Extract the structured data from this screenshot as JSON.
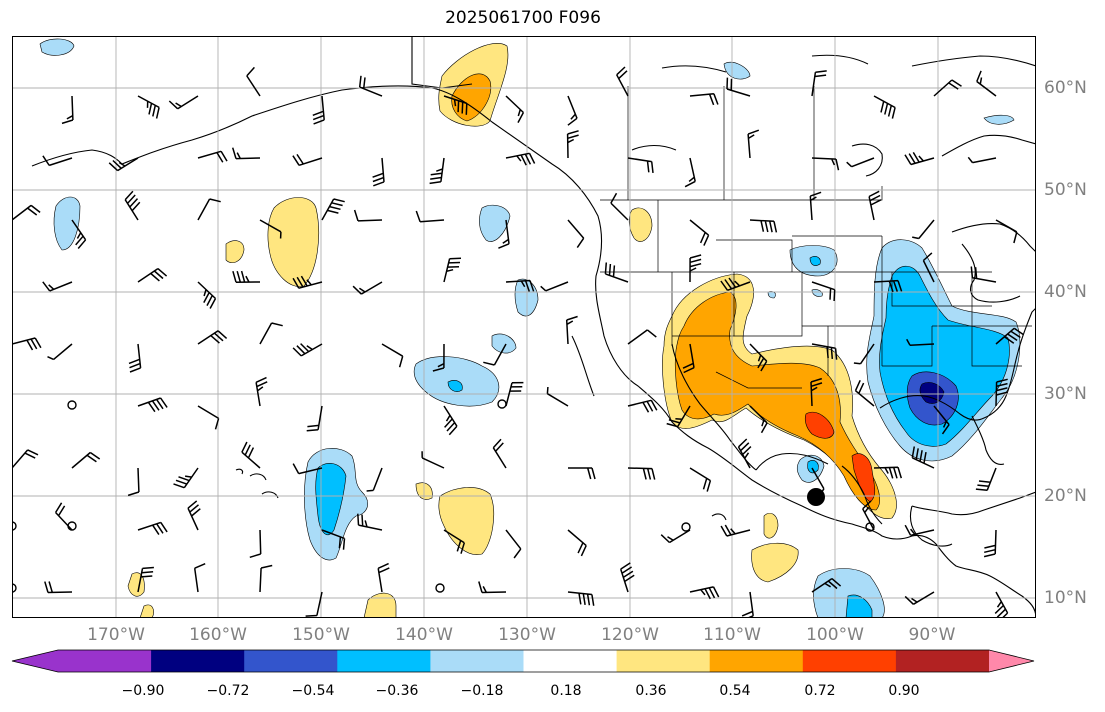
{
  "title": "2025061700 F096",
  "lon_labels": [
    "170°W",
    "160°W",
    "150°W",
    "140°W",
    "130°W",
    "120°W",
    "110°W",
    "100°W",
    "90°W"
  ],
  "lat_labels": [
    "60°N",
    "50°N",
    "40°N",
    "30°N",
    "20°N",
    "10°N"
  ],
  "colorbar": {
    "levels": [
      "−0.90",
      "−0.72",
      "−0.54",
      "−0.36",
      "−0.18",
      "0.18",
      "0.36",
      "0.54",
      "0.72",
      "0.90"
    ],
    "colors": [
      "#9933cc",
      "#000080",
      "#3355cc",
      "#00bfff",
      "#aadcf8",
      "#ffffff",
      "#ffe680",
      "#ffa500",
      "#ff4000",
      "#b22222",
      "#ff88aa"
    ]
  },
  "map": {
    "land_color": "#ffffff",
    "coast_color": "#000000",
    "grid_color": "#b0b0b0",
    "marker_color": "#000000"
  }
}
